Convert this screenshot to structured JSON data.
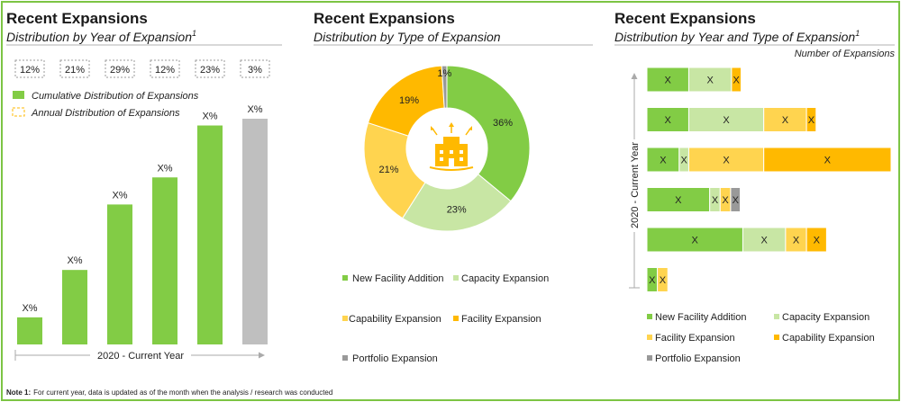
{
  "note": {
    "label": "Note 1:",
    "text": "For current year, data is updated as of the month when the analysis / research was conducted"
  },
  "chart_data": [
    {
      "type": "bar",
      "title": "Recent Expansions",
      "subtitle": "Distribution by Year of Expansion",
      "subtitle_sup": "1",
      "xlabel": "2020 - Current Year",
      "annual_percentages": [
        "12%",
        "21%",
        "29%",
        "12%",
        "23%",
        "3%"
      ],
      "legend": [
        "Cumulative Distribution of Expansions",
        "Annual Distribution of Expansions"
      ],
      "values": [
        12,
        33,
        62,
        74,
        97,
        100
      ],
      "labels": [
        "X%",
        "X%",
        "X%",
        "X%",
        "X%",
        "X%"
      ],
      "ylim": [
        0,
        100
      ],
      "colors": [
        "#82cc45",
        "#82cc45",
        "#82cc45",
        "#82cc45",
        "#82cc45",
        "#bfbfbf"
      ]
    },
    {
      "type": "pie",
      "title": "Recent Expansions",
      "subtitle": "Distribution by Type of Expansion",
      "slices": [
        {
          "name": "New Facility Addition",
          "value": 36,
          "label": "36%",
          "color": "#82cc45"
        },
        {
          "name": "Capacity Expansion",
          "value": 23,
          "label": "23%",
          "color": "#c8e6a4"
        },
        {
          "name": "Capability Expansion",
          "value": 21,
          "label": "21%",
          "color": "#ffd44f"
        },
        {
          "name": "Facility Expansion",
          "value": 19,
          "label": "19%",
          "color": "#ffb900"
        },
        {
          "name": "Portfolio Expansion",
          "value": 1,
          "label": "1%",
          "color": "#999999"
        }
      ],
      "center_icon": "building-expansion-icon"
    },
    {
      "type": "bar",
      "orientation": "horizontal-stacked",
      "title": "Recent Expansions",
      "subtitle": "Distribution by Year and Type of Expansion",
      "subtitle_sup": "1",
      "unit_label": "Number of Expansions",
      "ylabel": "2020 - Current Year",
      "series_names": [
        "New Facility Addition",
        "Capacity Expansion",
        "Facility Expansion",
        "Capability Expansion",
        "Portfolio Expansion"
      ],
      "series_colors": [
        "#82cc45",
        "#c8e6a4",
        "#ffd44f",
        "#ffb900",
        "#999999"
      ],
      "rows": [
        {
          "segments": [
            {
              "s": 0,
              "v": 4.8,
              "label": "X"
            },
            {
              "s": 1,
              "v": 4.9,
              "label": "X"
            },
            {
              "s": 3,
              "v": 1.1,
              "label": "X"
            }
          ]
        },
        {
          "segments": [
            {
              "s": 0,
              "v": 4.8,
              "label": "X"
            },
            {
              "s": 1,
              "v": 8.6,
              "label": "X"
            },
            {
              "s": 2,
              "v": 4.9,
              "label": "X"
            },
            {
              "s": 3,
              "v": 1.1,
              "label": "X"
            }
          ]
        },
        {
          "segments": [
            {
              "s": 0,
              "v": 3.7,
              "label": "X"
            },
            {
              "s": 1,
              "v": 1.1,
              "label": "X"
            },
            {
              "s": 2,
              "v": 8.6,
              "label": "X"
            },
            {
              "s": 3,
              "v": 14.6,
              "label": "X"
            }
          ]
        },
        {
          "segments": [
            {
              "s": 0,
              "v": 7.2,
              "label": "X"
            },
            {
              "s": 1,
              "v": 1.2,
              "label": "X"
            },
            {
              "s": 2,
              "v": 1.2,
              "label": "X"
            },
            {
              "s": 4,
              "v": 1.1,
              "label": "X"
            }
          ]
        },
        {
          "segments": [
            {
              "s": 0,
              "v": 11.0,
              "label": "X"
            },
            {
              "s": 1,
              "v": 4.9,
              "label": "X"
            },
            {
              "s": 2,
              "v": 2.4,
              "label": "X"
            },
            {
              "s": 3,
              "v": 2.3,
              "label": "X"
            }
          ]
        },
        {
          "segments": [
            {
              "s": 0,
              "v": 1.2,
              "label": "X"
            },
            {
              "s": 2,
              "v": 1.2,
              "label": "X"
            }
          ]
        }
      ],
      "xlim": [
        0,
        28
      ]
    }
  ]
}
